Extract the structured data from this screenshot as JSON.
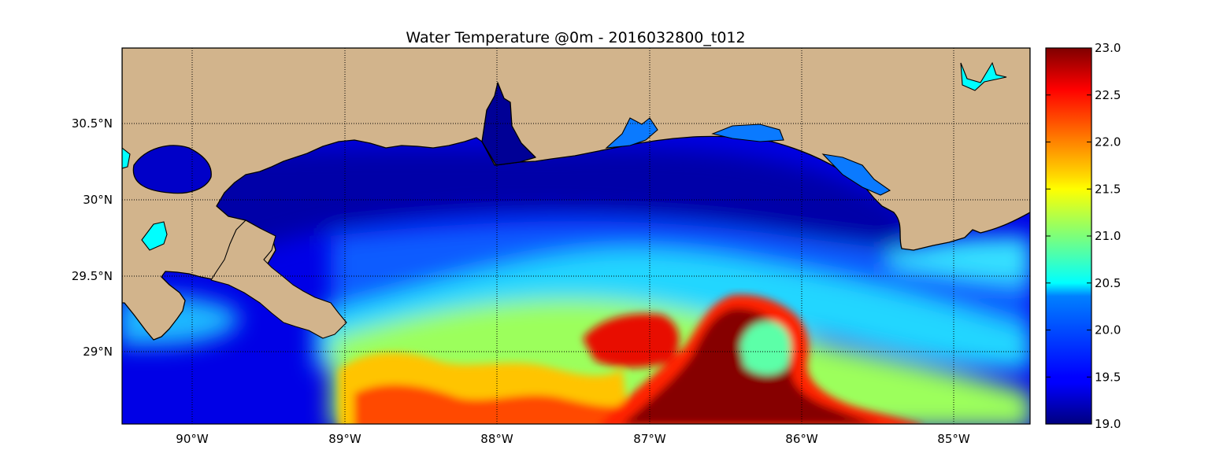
{
  "title": "Water Temperature @0m - 2016032800_t012",
  "axes": {
    "x_ticks": [
      {
        "value": -90,
        "label": "90°W"
      },
      {
        "value": -89,
        "label": "89°W"
      },
      {
        "value": -88,
        "label": "88°W"
      },
      {
        "value": -87,
        "label": "87°W"
      },
      {
        "value": -86,
        "label": "86°W"
      },
      {
        "value": -85,
        "label": "85°W"
      }
    ],
    "y_ticks": [
      {
        "value": 29.0,
        "label": "29°N"
      },
      {
        "value": 29.5,
        "label": "29.5°N"
      },
      {
        "value": 30.0,
        "label": "30°N"
      },
      {
        "value": 30.5,
        "label": "30.5°N"
      }
    ],
    "lon_range": [
      -90.47,
      -84.5
    ],
    "lat_range": [
      28.53,
      31.0
    ],
    "grid": "dotted"
  },
  "colorbar": {
    "min": 19.0,
    "max": 23.0,
    "colormap": "jet",
    "ticks": [
      "19.0",
      "19.5",
      "20.0",
      "20.5",
      "21.0",
      "21.5",
      "22.0",
      "22.5",
      "23.0"
    ]
  },
  "colors": {
    "land": "#d2b48c",
    "coastline": "#000000"
  }
}
